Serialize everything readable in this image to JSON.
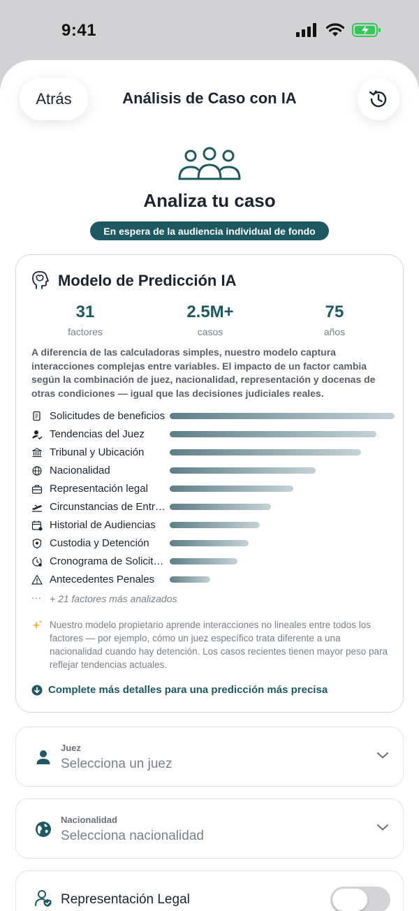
{
  "status_bar": {
    "time": "9:41",
    "icons": [
      "signal-icon",
      "wifi-icon",
      "battery-charging-icon"
    ],
    "battery_color": "#34c759"
  },
  "nav": {
    "back_label": "Atrás",
    "title": "Análisis de Caso con IA",
    "history_icon": "history-icon"
  },
  "hero": {
    "icon": "users-group-icon",
    "title": "Analiza tu caso",
    "status_pill": "En espera de la audiencia individual de fondo"
  },
  "model_card": {
    "title": "Modelo de Predicción IA",
    "icon": "brain-head-icon",
    "stats": [
      {
        "value": "31",
        "label": "factores"
      },
      {
        "value": "2.5M+",
        "label": "casos"
      },
      {
        "value": "75",
        "label": "años"
      }
    ],
    "description": "A diferencia de las calculadoras simples, nuestro modelo captura interacciones complejas entre variables. El impacto de un factor cambia según la combinación de juez, nacionalidad, representación y docenas de otras condiciones — igual que las decisiones judiciales reales.",
    "factors": [
      {
        "label": "Solicitudes de beneficios",
        "icon": "document-icon",
        "weight": 1.0
      },
      {
        "label": "Tendencias del Juez",
        "icon": "person-check-icon",
        "weight": 0.92
      },
      {
        "label": "Tribunal y Ubicación",
        "icon": "courthouse-icon",
        "weight": 0.85
      },
      {
        "label": "Nacionalidad",
        "icon": "globe-icon",
        "weight": 0.65
      },
      {
        "label": "Representación legal",
        "icon": "briefcase-icon",
        "weight": 0.55
      },
      {
        "label": "Circunstancias de Entrada",
        "icon": "plane-icon",
        "weight": 0.45
      },
      {
        "label": "Historial de Audiencias",
        "icon": "calendar-icon",
        "weight": 0.4
      },
      {
        "label": "Custodia y Detención",
        "icon": "shield-icon",
        "weight": 0.35
      },
      {
        "label": "Cronograma de Solicitudes",
        "icon": "clock-icon",
        "weight": 0.3
      },
      {
        "label": "Antecedentes Penales",
        "icon": "warning-icon",
        "weight": 0.18
      }
    ],
    "more_factors": "+ 21 factores más analizados",
    "note": "Nuestro modelo propietario aprende interacciones no lineales entre todos los factores — por ejemplo, cómo un juez específico trata diferente a una nacionalidad cuando hay detención. Los casos recientes tienen mayor peso para reflejar tendencias actuales.",
    "complete_link": "Complete más detalles para una predicción más precisa"
  },
  "fields": {
    "judge": {
      "label": "Juez",
      "value": "Selecciona un juez",
      "icon": "person-icon"
    },
    "nationality": {
      "label": "Nacionalidad",
      "value": "Selecciona nacionalidad",
      "icon": "globe-icon"
    },
    "representation": {
      "label": "Representación Legal",
      "icon": "person-shield-icon",
      "enabled": false
    }
  },
  "colors": {
    "accent": "#1e5962",
    "bar_start": "#5e7f87",
    "bar_end": "#c4d2d6"
  }
}
